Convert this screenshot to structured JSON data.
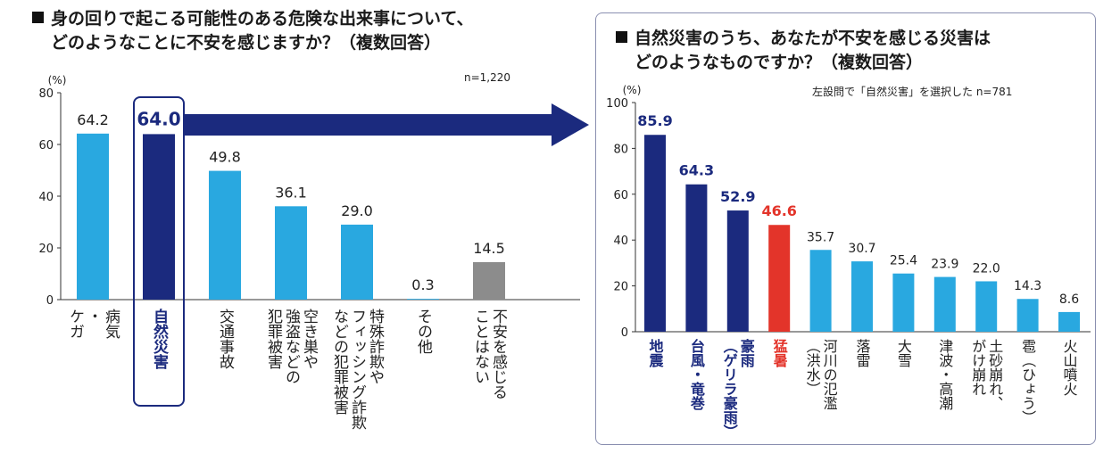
{
  "chart_data": [
    {
      "type": "bar",
      "title": "■ 身の回りで起こる可能性のある危険な出来事について、どのようなことに不安を感じますか？（複数回答）",
      "title_lines": [
        "身の回りで起こる可能性のある危険な出来事について、",
        "どのようなことに不安を感じますか？（複数回答）"
      ],
      "note": "n=1,220",
      "yunit": "(%)",
      "ylim": [
        0,
        80
      ],
      "yticks": [
        0,
        20,
        40,
        60,
        80
      ],
      "categories": [
        "病気・ケガ",
        "自然災害",
        "交通事故",
        "空き巣や強盗などの犯罪被害",
        "特殊詐欺やフィッシング詐欺などの犯罪被害",
        "その他",
        "不安を感じることはない"
      ],
      "category_lines": [
        [
          "病気",
          "・",
          "ケガ"
        ],
        [
          "自然災害"
        ],
        [
          "交通事故"
        ],
        [
          "空き巣や",
          "強盗などの",
          "犯罪被害"
        ],
        [
          "特殊詐欺や",
          "フィッシング詐欺",
          "などの犯罪被害"
        ],
        [
          "その他"
        ],
        [
          "不安を感じる",
          "ことはない"
        ]
      ],
      "values": [
        64.2,
        64.0,
        49.8,
        36.1,
        29.0,
        0.3,
        14.5
      ],
      "value_labels": [
        "64.2",
        "64.0",
        "49.8",
        "36.1",
        "29.0",
        "0.3",
        "14.5"
      ],
      "colors": [
        "#29a8e0",
        "#1b2a7e",
        "#29a8e0",
        "#29a8e0",
        "#29a8e0",
        "#29a8e0",
        "#8c8c8c"
      ],
      "highlight_index": 1,
      "grid": false
    },
    {
      "type": "bar",
      "title": "■ 自然災害のうち、あなたが不安を感じる災害はどのようなものですか？（複数回答）",
      "title_lines": [
        "自然災害のうち、あなたが不安を感じる災害は",
        "どのようなものですか？（複数回答）"
      ],
      "note": "左設問で「自然災害」を選択した n=781",
      "yunit": "(%)",
      "ylim": [
        0,
        100
      ],
      "yticks": [
        0,
        20,
        40,
        60,
        80,
        100
      ],
      "categories": [
        "地震",
        "台風・竜巻",
        "豪雨（ゲリラ豪雨）",
        "猛暑",
        "河川の氾濫（洪水）",
        "落雷",
        "大雪",
        "津波・高潮",
        "土砂崩れ、がけ崩れ",
        "雹（ひょう）",
        "火山噴火"
      ],
      "category_lines": [
        [
          "地震"
        ],
        [
          "台風・竜巻"
        ],
        [
          "豪雨",
          "（ゲリラ豪雨）"
        ],
        [
          "猛暑"
        ],
        [
          "河川の氾濫",
          "（洪水）"
        ],
        [
          "落雷"
        ],
        [
          "大雪"
        ],
        [
          "津波・高潮"
        ],
        [
          "土砂崩れ、",
          "がけ崩れ"
        ],
        [
          "雹（ひょう）"
        ],
        [
          "火山噴火"
        ]
      ],
      "values": [
        85.9,
        64.3,
        52.9,
        46.6,
        35.7,
        30.7,
        25.4,
        23.9,
        22.0,
        14.3,
        8.6
      ],
      "value_labels": [
        "85.9",
        "64.3",
        "52.9",
        "46.6",
        "35.7",
        "30.7",
        "25.4",
        "23.9",
        "22.0",
        "14.3",
        "8.6"
      ],
      "colors": [
        "#1b2a7e",
        "#1b2a7e",
        "#1b2a7e",
        "#e3342a",
        "#29a8e0",
        "#29a8e0",
        "#29a8e0",
        "#29a8e0",
        "#29a8e0",
        "#29a8e0",
        "#29a8e0"
      ],
      "label_colors": [
        "#1b2a7e",
        "#1b2a7e",
        "#1b2a7e",
        "#e3342a",
        "#222222",
        "#222222",
        "#222222",
        "#222222",
        "#222222",
        "#222222",
        "#222222"
      ],
      "grid": false
    }
  ],
  "colors": {
    "accent": "#1b2a7e",
    "light": "#29a8e0",
    "red": "#e3342a",
    "gray": "#8c8c8c"
  }
}
